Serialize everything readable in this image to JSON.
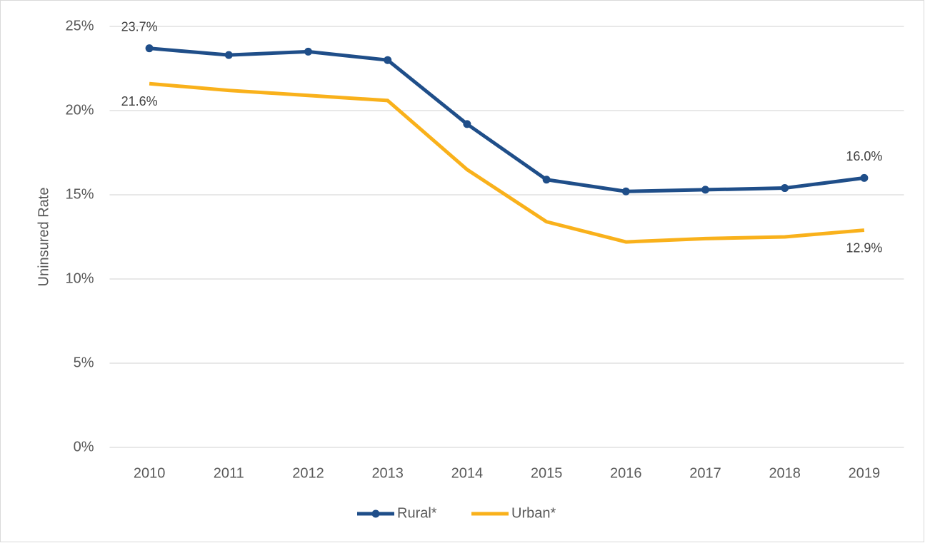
{
  "chart_data": {
    "type": "line",
    "ylabel": "Uninsured Rate",
    "categories": [
      "2010",
      "2011",
      "2012",
      "2013",
      "2014",
      "2015",
      "2016",
      "2017",
      "2018",
      "2019"
    ],
    "series": [
      {
        "name": "Rural*",
        "color": "#1f4e89",
        "markers": true,
        "values": [
          23.7,
          23.3,
          23.5,
          23.0,
          19.2,
          15.9,
          15.2,
          15.3,
          15.4,
          16.0
        ],
        "value_labels": [
          "23.7%",
          null,
          null,
          null,
          null,
          null,
          null,
          null,
          null,
          "16.0%"
        ]
      },
      {
        "name": "Urban*",
        "color": "#f9b11b",
        "markers": false,
        "values": [
          21.6,
          21.2,
          20.9,
          20.6,
          16.5,
          13.4,
          12.2,
          12.4,
          12.5,
          12.9
        ],
        "value_labels": [
          "21.6%",
          null,
          null,
          null,
          null,
          null,
          null,
          null,
          null,
          "12.9%"
        ]
      }
    ],
    "ylim": [
      0,
      25
    ],
    "yticks": [
      {
        "value": 0,
        "label": "0%"
      },
      {
        "value": 5,
        "label": "5%"
      },
      {
        "value": 10,
        "label": "10%"
      },
      {
        "value": 15,
        "label": "15%"
      },
      {
        "value": 20,
        "label": "20%"
      },
      {
        "value": 25,
        "label": "25%"
      }
    ],
    "grid": true,
    "legend": "bottom"
  }
}
